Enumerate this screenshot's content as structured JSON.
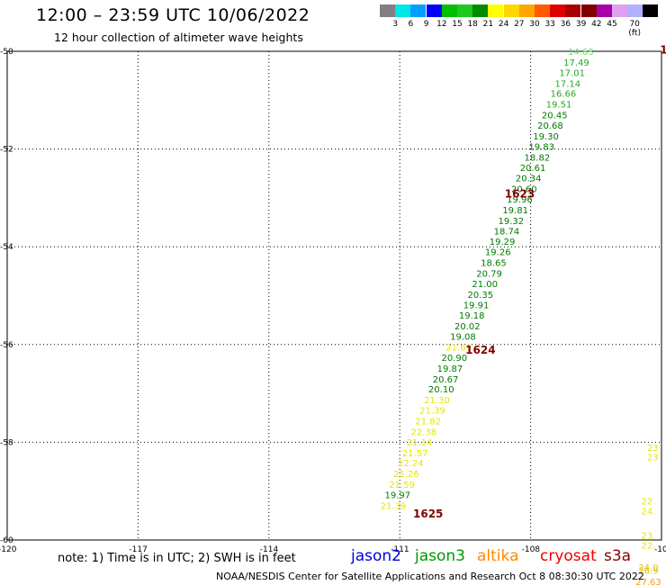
{
  "header": {
    "title": "12:00 – 23:59 UTC 10/06/2022",
    "subtitle": "12 hour collection of altimeter wave heights"
  },
  "scale": {
    "labels": [
      "3",
      "6",
      "9",
      "12",
      "15",
      "18",
      "21",
      "24",
      "27",
      "30",
      "33",
      "36",
      "39",
      "42",
      "45",
      "70 (ft)"
    ],
    "colors": [
      "#808080",
      "#00e5e5",
      "#009fff",
      "#0000ff",
      "#00c000",
      "#1ec81e",
      "#008a00",
      "#ffff00",
      "#ffd700",
      "#ffa500",
      "#ff5a00",
      "#dd0000",
      "#aa0000",
      "#800000",
      "#aa00aa",
      "#e0a0f0",
      "#b0b0ff",
      "#000000"
    ]
  },
  "footer": {
    "note": "note: 1) Time is in UTC; 2) SWH is in feet",
    "satellites": [
      {
        "name": "jason2",
        "color": "#0000dd"
      },
      {
        "name": "jason3",
        "color": "#009900"
      },
      {
        "name": "altika",
        "color": "#ff8800"
      },
      {
        "name": "cryosat",
        "color": "#ee0000"
      },
      {
        "name": "s3a",
        "color": "#880000"
      }
    ],
    "credit": "NOAA/NESDIS Center for Satellite Applications and Research   Oct  8 08:30:30 UTC 2022"
  },
  "chart_data": {
    "type": "scatter",
    "xlim": [
      -120,
      -105
    ],
    "ylim": [
      -60,
      -50
    ],
    "x_ticks": [
      "-120",
      "-117",
      "-114",
      "-111",
      "-108",
      "-10"
    ],
    "y_ticks": [
      "-50",
      "-52",
      "-54",
      "-56",
      "-58",
      "-60"
    ],
    "grid": true,
    "points": [
      {
        "x": -106.85,
        "y": -50.0,
        "label": "14.63",
        "color": "#66dd66"
      },
      {
        "x": -106.95,
        "y": -50.22,
        "label": "17.49",
        "color": "#22aa22"
      },
      {
        "x": -107.05,
        "y": -50.43,
        "label": "17.01",
        "color": "#22aa22"
      },
      {
        "x": -107.15,
        "y": -50.65,
        "label": "17.14",
        "color": "#22aa22"
      },
      {
        "x": -107.25,
        "y": -50.86,
        "label": "16.66",
        "color": "#22aa22"
      },
      {
        "x": -107.35,
        "y": -51.08,
        "label": "19.51",
        "color": "#22aa22"
      },
      {
        "x": -107.45,
        "y": -51.3,
        "label": "20.45",
        "color": "#007a00"
      },
      {
        "x": -107.55,
        "y": -51.51,
        "label": "20.68",
        "color": "#007a00"
      },
      {
        "x": -107.65,
        "y": -51.73,
        "label": "19.30",
        "color": "#007a00"
      },
      {
        "x": -107.75,
        "y": -51.94,
        "label": "19.83",
        "color": "#007a00"
      },
      {
        "x": -107.85,
        "y": -52.16,
        "label": "18.82",
        "color": "#007a00"
      },
      {
        "x": -107.95,
        "y": -52.38,
        "label": "20.61",
        "color": "#007a00"
      },
      {
        "x": -108.05,
        "y": -52.59,
        "label": "20.34",
        "color": "#007a00"
      },
      {
        "x": -108.15,
        "y": -52.81,
        "label": "20.60",
        "color": "#007a00"
      },
      {
        "x": -108.25,
        "y": -53.02,
        "label": "19.96",
        "color": "#007a00"
      },
      {
        "x": -108.35,
        "y": -53.24,
        "label": "19.81",
        "color": "#007a00"
      },
      {
        "x": -108.45,
        "y": -53.46,
        "label": "19.32",
        "color": "#007a00"
      },
      {
        "x": -108.55,
        "y": -53.67,
        "label": "18.74",
        "color": "#007a00"
      },
      {
        "x": -108.65,
        "y": -53.89,
        "label": "19.29",
        "color": "#007a00"
      },
      {
        "x": -108.75,
        "y": -54.1,
        "label": "19.26",
        "color": "#007a00"
      },
      {
        "x": -108.85,
        "y": -54.32,
        "label": "18.65",
        "color": "#007a00"
      },
      {
        "x": -108.95,
        "y": -54.54,
        "label": "20.79",
        "color": "#007a00"
      },
      {
        "x": -109.05,
        "y": -54.75,
        "label": "21.00",
        "color": "#007a00"
      },
      {
        "x": -109.15,
        "y": -54.97,
        "label": "20.35",
        "color": "#007a00"
      },
      {
        "x": -109.25,
        "y": -55.18,
        "label": "19.91",
        "color": "#007a00"
      },
      {
        "x": -109.35,
        "y": -55.4,
        "label": "19.18",
        "color": "#007a00"
      },
      {
        "x": -109.45,
        "y": -55.62,
        "label": "20.02",
        "color": "#007a00"
      },
      {
        "x": -109.55,
        "y": -55.83,
        "label": "19.08",
        "color": "#007a00"
      },
      {
        "x": -109.65,
        "y": -56.05,
        "label": "21.69",
        "color": "#e6e600"
      },
      {
        "x": -109.75,
        "y": -56.26,
        "label": "20.90",
        "color": "#007a00"
      },
      {
        "x": -109.85,
        "y": -56.48,
        "label": "19.87",
        "color": "#007a00"
      },
      {
        "x": -109.95,
        "y": -56.7,
        "label": "20.67",
        "color": "#007a00"
      },
      {
        "x": -110.05,
        "y": -56.91,
        "label": "20.10",
        "color": "#007a00"
      },
      {
        "x": -110.15,
        "y": -57.13,
        "label": "21.30",
        "color": "#e6e600"
      },
      {
        "x": -110.25,
        "y": -57.34,
        "label": "21.39",
        "color": "#e6e600"
      },
      {
        "x": -110.35,
        "y": -57.56,
        "label": "21.82",
        "color": "#e6e600"
      },
      {
        "x": -110.45,
        "y": -57.78,
        "label": "22.38",
        "color": "#e6e600"
      },
      {
        "x": -110.55,
        "y": -57.99,
        "label": "21.14",
        "color": "#e6e600"
      },
      {
        "x": -110.65,
        "y": -58.21,
        "label": "21.57",
        "color": "#e6e600"
      },
      {
        "x": -110.75,
        "y": -58.42,
        "label": "22.24",
        "color": "#e6e600"
      },
      {
        "x": -110.85,
        "y": -58.64,
        "label": "21.26",
        "color": "#e6e600"
      },
      {
        "x": -110.95,
        "y": -58.86,
        "label": "21.59",
        "color": "#e6e600"
      },
      {
        "x": -111.05,
        "y": -59.07,
        "label": "19.97",
        "color": "#007a00"
      },
      {
        "x": -111.15,
        "y": -59.29,
        "label": "21.39",
        "color": "#e6e600"
      },
      {
        "x": -105.2,
        "y": -58.1,
        "label": "23",
        "color": "#e6e600"
      },
      {
        "x": -105.2,
        "y": -58.3,
        "label": "23",
        "color": "#e6e600"
      },
      {
        "x": -105.3,
        "y": -59.2,
        "label": "22.",
        "color": "#e6e600"
      },
      {
        "x": -105.3,
        "y": -59.4,
        "label": "24.",
        "color": "#e6e600"
      },
      {
        "x": -105.3,
        "y": -59.9,
        "label": "23.",
        "color": "#e6e600"
      },
      {
        "x": -105.3,
        "y": -60.1,
        "label": "22.",
        "color": "#e6e600"
      },
      {
        "x": -105.3,
        "y": -60.55,
        "label": "24.0",
        "color": "#e6c000"
      },
      {
        "x": -105.3,
        "y": -60.62,
        "label": "26.9",
        "color": "#e6c000"
      },
      {
        "x": -105.3,
        "y": -60.85,
        "label": "27.63",
        "color": "#ff9a00"
      }
    ],
    "time_labels": [
      {
        "x": -108.25,
        "y": -52.9,
        "label": "1623"
      },
      {
        "x": -109.15,
        "y": -56.1,
        "label": "1624"
      },
      {
        "x": -110.35,
        "y": -59.45,
        "label": "1625"
      },
      {
        "x": -104.95,
        "y": -49.95,
        "label": "1"
      }
    ]
  }
}
